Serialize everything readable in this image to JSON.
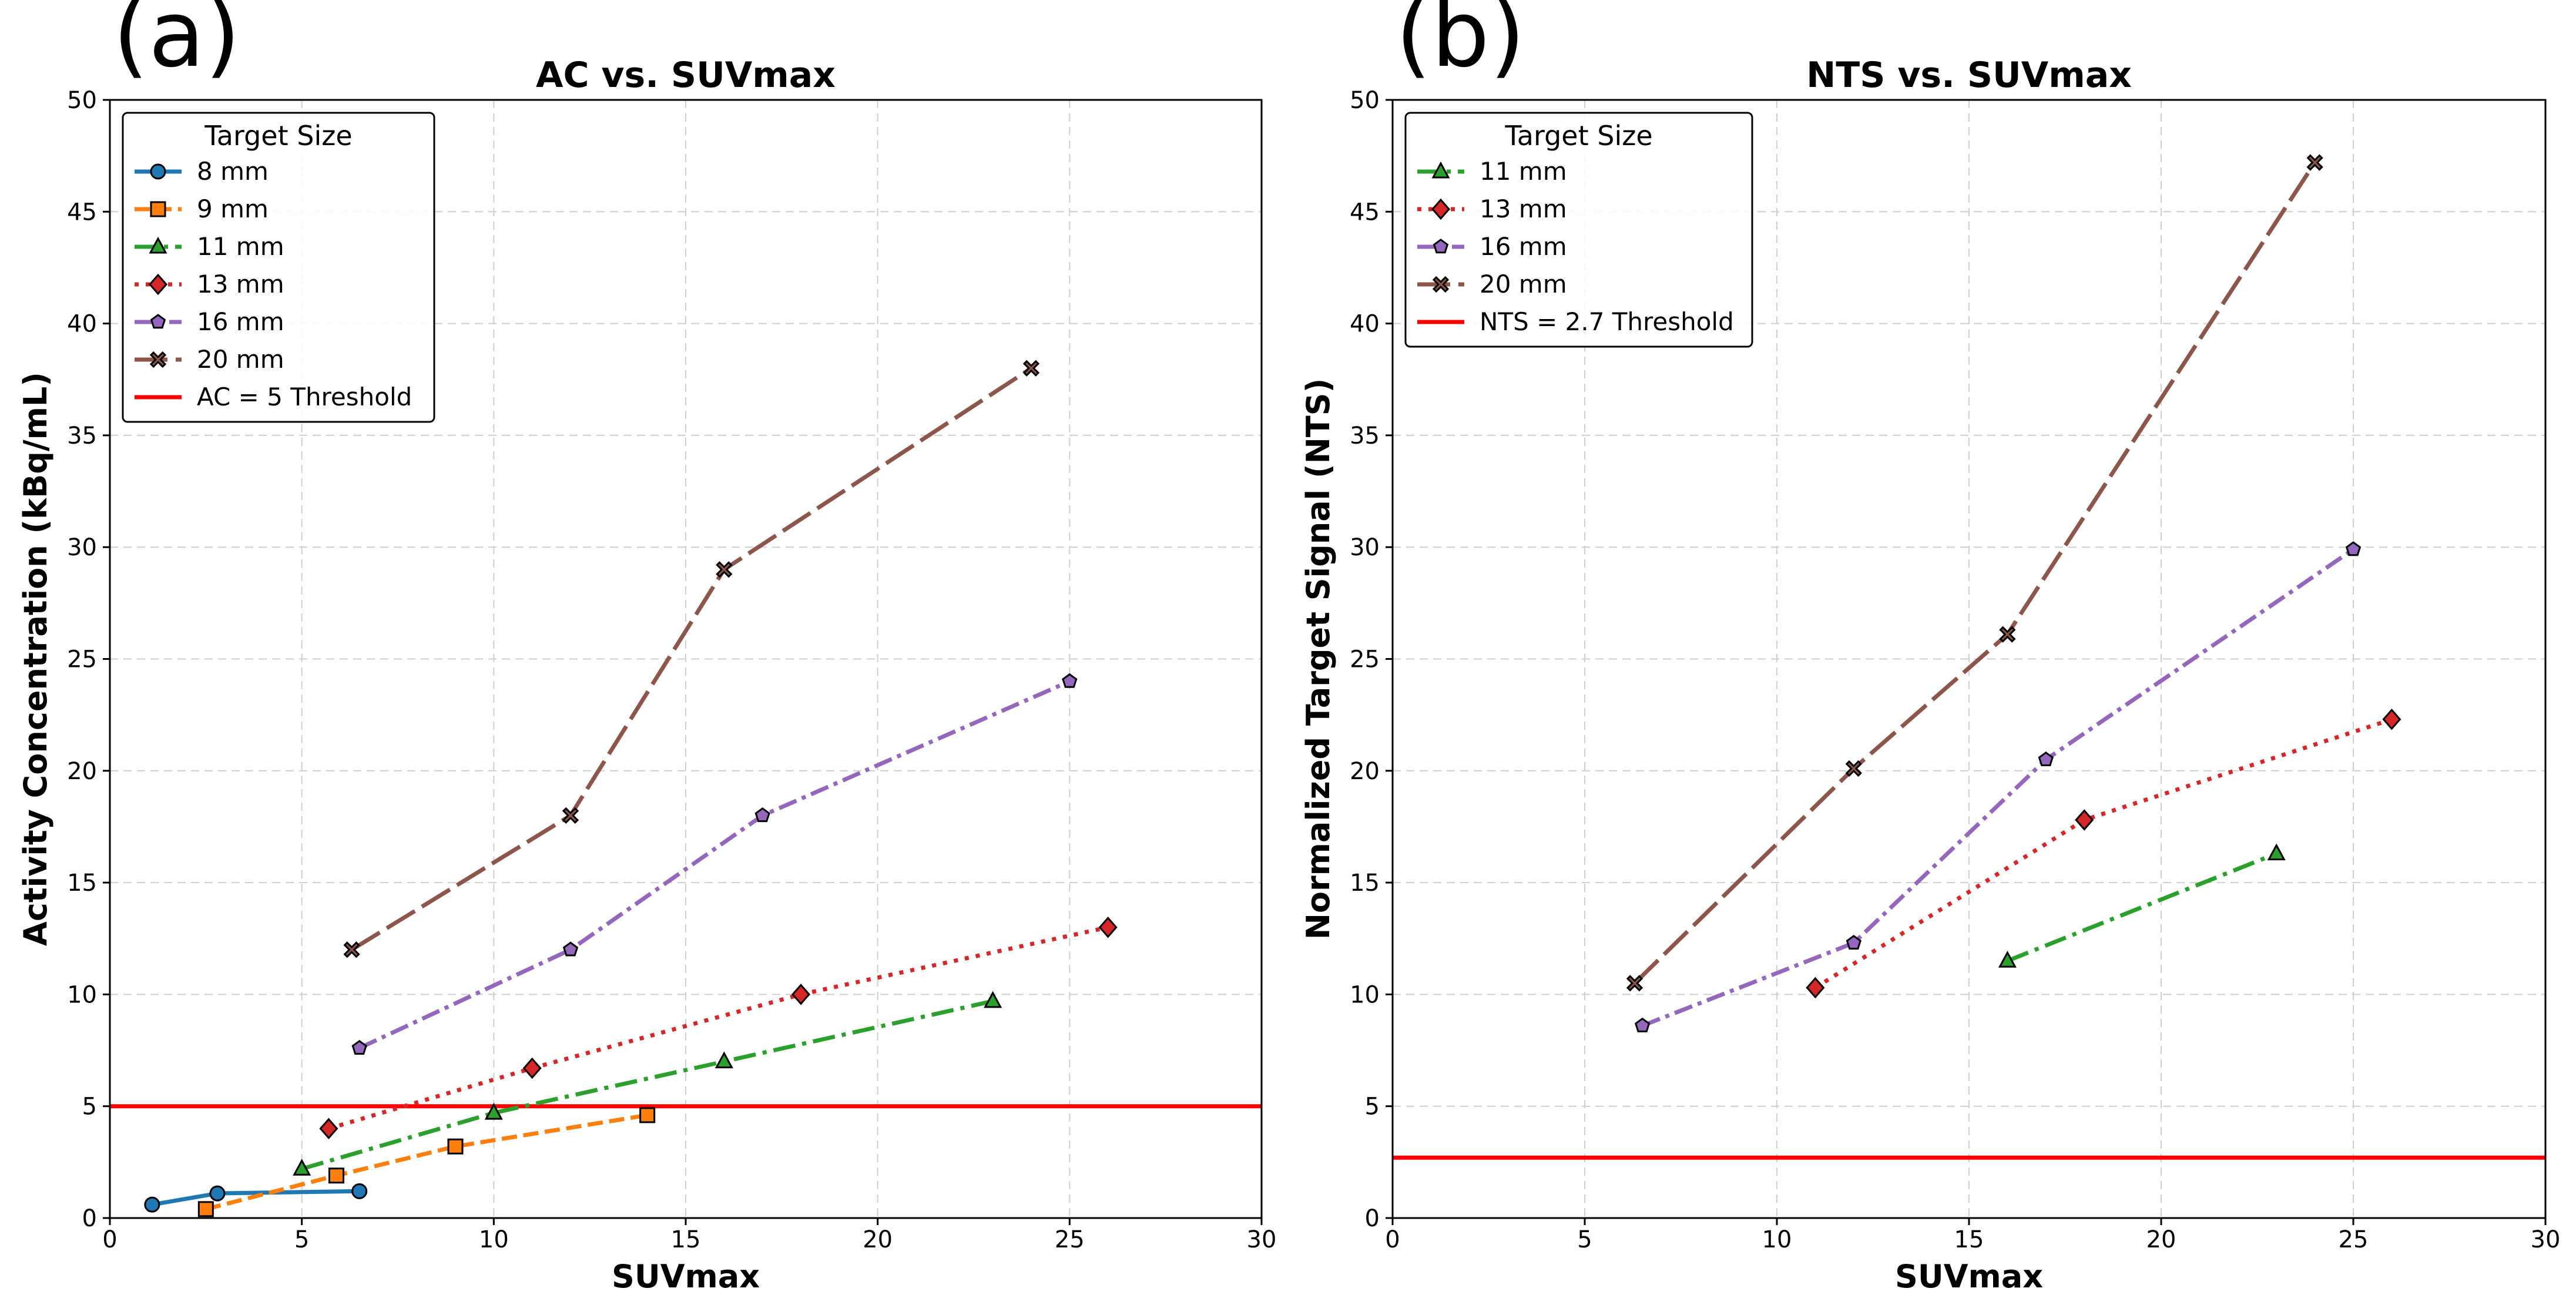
{
  "panels": [
    {
      "panel_label": "(a)",
      "legend": {
        "title": "Target Size",
        "location": "upper-left"
      },
      "threshold": {
        "label": "AC = 5 Threshold",
        "value": 5,
        "color": "#ff0000"
      },
      "chart_data": {
        "type": "line",
        "title": "AC vs. SUVmax",
        "xlabel": "SUVmax",
        "ylabel": "Activity Concentration (kBq/mL)",
        "xlim": [
          0,
          30
        ],
        "ylim": [
          0,
          50
        ],
        "xticks": [
          0,
          5,
          10,
          15,
          20,
          25,
          30
        ],
        "yticks": [
          0,
          5,
          10,
          15,
          20,
          25,
          30,
          35,
          40,
          45,
          50
        ],
        "grid": true,
        "series": [
          {
            "name": "8 mm",
            "color": "#1f77b4",
            "dash": "solid",
            "marker": "circle",
            "x": [
              1.1,
              2.8,
              6.5
            ],
            "y": [
              0.6,
              1.1,
              1.2
            ]
          },
          {
            "name": "9 mm",
            "color": "#ff7f0e",
            "dash": "dashed",
            "marker": "square",
            "x": [
              2.5,
              5.9,
              9.0,
              14.0
            ],
            "y": [
              0.4,
              1.9,
              3.2,
              4.6
            ]
          },
          {
            "name": "11 mm",
            "color": "#2ca02c",
            "dash": "dashdot",
            "marker": "triangle",
            "x": [
              5.0,
              10.0,
              16.0,
              23.0
            ],
            "y": [
              2.2,
              4.7,
              7.0,
              9.7
            ]
          },
          {
            "name": "13 mm",
            "color": "#d62728",
            "dash": "dotted",
            "marker": "diamond",
            "x": [
              5.7,
              11.0,
              18.0,
              26.0
            ],
            "y": [
              4.0,
              6.7,
              10.0,
              13.0
            ]
          },
          {
            "name": "16 mm",
            "color": "#9467bd",
            "dash": "dashdot2",
            "marker": "pentagon",
            "x": [
              6.5,
              12.0,
              17.0,
              25.0
            ],
            "y": [
              7.6,
              12.0,
              18.0,
              24.0
            ]
          },
          {
            "name": "20 mm",
            "color": "#8c564b",
            "dash": "longdash",
            "marker": "x",
            "x": [
              6.3,
              12.0,
              16.0,
              24.0
            ],
            "y": [
              12.0,
              18.0,
              29.0,
              38.0
            ]
          }
        ]
      }
    },
    {
      "panel_label": "(b)",
      "legend": {
        "title": "Target Size",
        "location": "upper-left"
      },
      "threshold": {
        "label": "NTS = 2.7 Threshold",
        "value": 2.7,
        "color": "#ff0000"
      },
      "chart_data": {
        "type": "line",
        "title": "NTS vs. SUVmax",
        "xlabel": "SUVmax",
        "ylabel": "Normalized Target Signal (NTS)",
        "xlim": [
          0,
          30
        ],
        "ylim": [
          0,
          50
        ],
        "xticks": [
          0,
          5,
          10,
          15,
          20,
          25,
          30
        ],
        "yticks": [
          0,
          5,
          10,
          15,
          20,
          25,
          30,
          35,
          40,
          45,
          50
        ],
        "grid": true,
        "series": [
          {
            "name": "11 mm",
            "color": "#2ca02c",
            "dash": "dashdot",
            "marker": "triangle",
            "x": [
              16.0,
              23.0
            ],
            "y": [
              11.5,
              16.3
            ]
          },
          {
            "name": "13 mm",
            "color": "#d62728",
            "dash": "dotted",
            "marker": "diamond",
            "x": [
              11.0,
              18.0,
              26.0
            ],
            "y": [
              10.3,
              17.8,
              22.3
            ]
          },
          {
            "name": "16 mm",
            "color": "#9467bd",
            "dash": "dashdot2",
            "marker": "pentagon",
            "x": [
              6.5,
              12.0,
              17.0,
              25.0
            ],
            "y": [
              8.6,
              12.3,
              20.5,
              29.9
            ]
          },
          {
            "name": "20 mm",
            "color": "#8c564b",
            "dash": "longdash",
            "marker": "x",
            "x": [
              6.3,
              12.0,
              16.0,
              24.0
            ],
            "y": [
              10.5,
              20.1,
              26.1,
              47.2
            ]
          }
        ]
      }
    }
  ]
}
